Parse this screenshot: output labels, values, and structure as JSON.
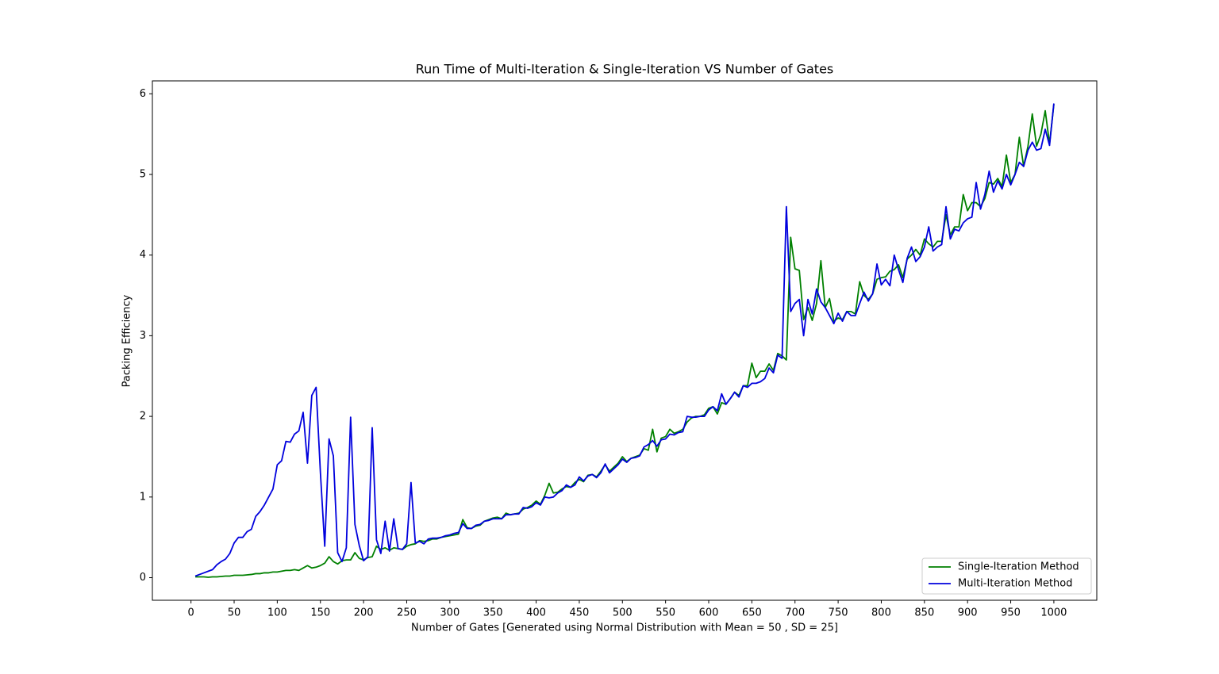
{
  "chart_data": {
    "type": "line",
    "title": "Run Time of Multi-Iteration & Single-Iteration VS Number of Gates",
    "x_label": "Number of Gates [Generated using Normal Distribution with Mean = 50 , SD = 25]",
    "y_label": "Packing Efficiency",
    "xlim": [
      -44.75,
      1049.75
    ],
    "ylim": [
      -0.28,
      6.16
    ],
    "xticks": [
      0,
      50,
      100,
      150,
      200,
      250,
      300,
      350,
      400,
      450,
      500,
      550,
      600,
      650,
      700,
      750,
      800,
      850,
      900,
      950,
      1000
    ],
    "yticks": [
      0,
      1,
      2,
      3,
      4,
      5,
      6
    ],
    "legend": "lower right",
    "x": [
      5,
      10,
      15,
      20,
      25,
      30,
      35,
      40,
      45,
      50,
      55,
      60,
      65,
      70,
      75,
      80,
      85,
      90,
      95,
      100,
      105,
      110,
      115,
      120,
      125,
      130,
      135,
      140,
      145,
      150,
      155,
      160,
      165,
      170,
      175,
      180,
      185,
      190,
      195,
      200,
      205,
      210,
      215,
      220,
      225,
      230,
      235,
      240,
      245,
      250,
      255,
      260,
      265,
      270,
      275,
      280,
      285,
      290,
      295,
      300,
      305,
      310,
      315,
      320,
      325,
      330,
      335,
      340,
      345,
      350,
      355,
      360,
      365,
      370,
      375,
      380,
      385,
      390,
      395,
      400,
      405,
      410,
      415,
      420,
      425,
      430,
      435,
      440,
      445,
      450,
      455,
      460,
      465,
      470,
      475,
      480,
      485,
      490,
      495,
      500,
      505,
      510,
      515,
      520,
      525,
      530,
      535,
      540,
      545,
      550,
      555,
      560,
      565,
      570,
      575,
      580,
      585,
      590,
      595,
      600,
      605,
      610,
      615,
      620,
      625,
      630,
      635,
      640,
      645,
      650,
      655,
      660,
      665,
      670,
      675,
      680,
      685,
      690,
      695,
      700,
      705,
      710,
      715,
      720,
      725,
      730,
      735,
      740,
      745,
      750,
      755,
      760,
      765,
      770,
      775,
      780,
      785,
      790,
      795,
      800,
      805,
      810,
      815,
      820,
      825,
      830,
      835,
      840,
      845,
      850,
      855,
      860,
      865,
      870,
      875,
      880,
      885,
      890,
      895,
      900,
      905,
      910,
      915,
      920,
      925,
      930,
      935,
      940,
      945,
      950,
      955,
      960,
      965,
      970,
      975,
      980,
      985,
      990,
      995,
      1000
    ],
    "series": [
      {
        "name": "Single-Iteration Method",
        "color": "#008000",
        "values": [
          0.01,
          0.01,
          0.01,
          0.005,
          0.01,
          0.01,
          0.015,
          0.02,
          0.02,
          0.03,
          0.03,
          0.03,
          0.035,
          0.04,
          0.05,
          0.05,
          0.06,
          0.06,
          0.07,
          0.07,
          0.08,
          0.09,
          0.09,
          0.1,
          0.09,
          0.12,
          0.15,
          0.12,
          0.13,
          0.15,
          0.18,
          0.26,
          0.2,
          0.17,
          0.21,
          0.22,
          0.22,
          0.31,
          0.24,
          0.22,
          0.25,
          0.26,
          0.39,
          0.35,
          0.37,
          0.34,
          0.37,
          0.36,
          0.35,
          0.39,
          0.41,
          0.42,
          0.46,
          0.45,
          0.46,
          0.48,
          0.48,
          0.5,
          0.51,
          0.52,
          0.53,
          0.54,
          0.72,
          0.62,
          0.61,
          0.64,
          0.65,
          0.7,
          0.72,
          0.74,
          0.75,
          0.73,
          0.8,
          0.78,
          0.79,
          0.8,
          0.85,
          0.87,
          0.9,
          0.95,
          0.91,
          1.02,
          1.17,
          1.05,
          1.06,
          1.1,
          1.13,
          1.12,
          1.18,
          1.22,
          1.19,
          1.27,
          1.28,
          1.25,
          1.32,
          1.4,
          1.32,
          1.37,
          1.42,
          1.5,
          1.44,
          1.48,
          1.5,
          1.52,
          1.6,
          1.58,
          1.84,
          1.56,
          1.73,
          1.75,
          1.84,
          1.79,
          1.81,
          1.84,
          1.93,
          1.98,
          2.0,
          2.0,
          2.02,
          2.1,
          2.12,
          2.03,
          2.17,
          2.15,
          2.22,
          2.3,
          2.26,
          2.38,
          2.38,
          2.66,
          2.48,
          2.56,
          2.56,
          2.65,
          2.57,
          2.78,
          2.75,
          2.7,
          4.22,
          3.83,
          3.81,
          3.2,
          3.35,
          3.19,
          3.4,
          3.93,
          3.35,
          3.46,
          3.18,
          3.22,
          3.2,
          3.3,
          3.3,
          3.27,
          3.67,
          3.5,
          3.45,
          3.52,
          3.7,
          3.72,
          3.73,
          3.8,
          3.82,
          3.88,
          3.72,
          3.95,
          4.0,
          4.07,
          4.0,
          4.2,
          4.14,
          4.1,
          4.17,
          4.17,
          4.5,
          4.25,
          4.35,
          4.35,
          4.75,
          4.55,
          4.65,
          4.65,
          4.6,
          4.7,
          4.9,
          4.88,
          4.95,
          4.85,
          5.24,
          4.9,
          5.0,
          5.46,
          5.1,
          5.35,
          5.75,
          5.35,
          5.5,
          5.79,
          5.38,
          5.87
        ]
      },
      {
        "name": "Multi-Iteration Method",
        "color": "#0000dd",
        "values": [
          0.02,
          0.04,
          0.06,
          0.08,
          0.1,
          0.16,
          0.2,
          0.23,
          0.3,
          0.43,
          0.5,
          0.5,
          0.57,
          0.6,
          0.76,
          0.82,
          0.9,
          1.0,
          1.1,
          1.4,
          1.45,
          1.69,
          1.68,
          1.78,
          1.82,
          2.05,
          1.42,
          2.26,
          2.36,
          1.3,
          0.39,
          1.72,
          1.51,
          0.31,
          0.2,
          0.37,
          1.99,
          0.66,
          0.4,
          0.21,
          0.26,
          1.86,
          0.47,
          0.3,
          0.7,
          0.33,
          0.73,
          0.36,
          0.35,
          0.42,
          1.18,
          0.43,
          0.45,
          0.42,
          0.48,
          0.49,
          0.49,
          0.5,
          0.52,
          0.53,
          0.55,
          0.56,
          0.67,
          0.61,
          0.61,
          0.65,
          0.66,
          0.7,
          0.71,
          0.73,
          0.73,
          0.73,
          0.78,
          0.78,
          0.79,
          0.79,
          0.87,
          0.86,
          0.88,
          0.93,
          0.9,
          1.0,
          0.99,
          1.0,
          1.05,
          1.08,
          1.15,
          1.12,
          1.15,
          1.25,
          1.2,
          1.26,
          1.28,
          1.24,
          1.3,
          1.41,
          1.3,
          1.35,
          1.4,
          1.47,
          1.43,
          1.48,
          1.49,
          1.51,
          1.62,
          1.65,
          1.7,
          1.63,
          1.71,
          1.72,
          1.78,
          1.77,
          1.8,
          1.81,
          2.0,
          1.99,
          1.99,
          2.0,
          2.0,
          2.08,
          2.12,
          2.07,
          2.28,
          2.15,
          2.22,
          2.3,
          2.24,
          2.38,
          2.36,
          2.41,
          2.41,
          2.43,
          2.47,
          2.6,
          2.54,
          2.76,
          2.72,
          4.6,
          3.3,
          3.4,
          3.45,
          3.0,
          3.45,
          3.27,
          3.58,
          3.42,
          3.35,
          3.25,
          3.15,
          3.28,
          3.18,
          3.3,
          3.25,
          3.25,
          3.4,
          3.54,
          3.43,
          3.52,
          3.89,
          3.63,
          3.7,
          3.62,
          4.0,
          3.82,
          3.66,
          3.96,
          4.1,
          3.92,
          3.98,
          4.1,
          4.35,
          4.05,
          4.1,
          4.13,
          4.6,
          4.2,
          4.32,
          4.3,
          4.4,
          4.45,
          4.47,
          4.9,
          4.57,
          4.75,
          5.04,
          4.78,
          4.92,
          4.82,
          5.0,
          4.87,
          5.0,
          5.15,
          5.1,
          5.3,
          5.4,
          5.3,
          5.32,
          5.56,
          5.36,
          5.88
        ]
      }
    ]
  }
}
